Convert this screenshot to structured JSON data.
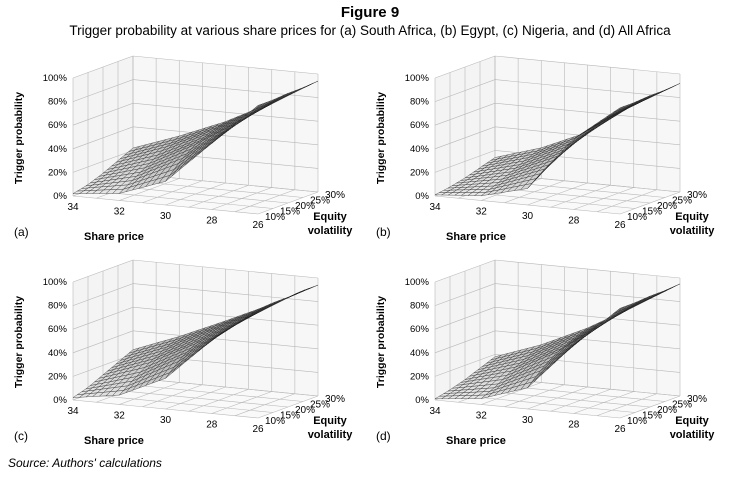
{
  "figure": {
    "title": "Figure 9",
    "subtitle": "Trigger probability at various share prices for (a) South Africa, (b) Egypt, (c) Nigeria, and (d) All Africa",
    "source": "Source: Authors' calculations"
  },
  "chart_data": [
    {
      "type": "surface",
      "panel": "(a)",
      "xlabel": "Share price",
      "ylabel": "Equity volatility",
      "zlabel": "Trigger probability",
      "x_ticks": [
        "34",
        "32",
        "30",
        "28",
        "26"
      ],
      "y_ticks": [
        "10%",
        "15%",
        "20%",
        "25%",
        "30%"
      ],
      "z_ticks": [
        "0%",
        "20%",
        "40%",
        "60%",
        "80%",
        "100%"
      ],
      "xlim": [
        34,
        26
      ],
      "ylim": [
        0.1,
        0.3
      ],
      "zlim": [
        0,
        1
      ],
      "surface_grid": {
        "share_price": [
          34,
          32,
          30,
          28,
          26
        ],
        "equity_volatility": [
          0.1,
          0.15,
          0.2,
          0.25,
          0.3
        ],
        "trigger_probability": [
          [
            0.02,
            0.05,
            0.1,
            0.16,
            0.22
          ],
          [
            0.06,
            0.14,
            0.22,
            0.3,
            0.36
          ],
          [
            0.2,
            0.33,
            0.42,
            0.48,
            0.52
          ],
          [
            0.56,
            0.62,
            0.66,
            0.69,
            0.72
          ],
          [
            0.92,
            0.92,
            0.93,
            0.93,
            0.94
          ]
        ]
      },
      "grid": true
    },
    {
      "type": "surface",
      "panel": "(b)",
      "xlabel": "Share price",
      "ylabel": "Equity volatility",
      "zlabel": "Trigger probability",
      "x_ticks": [
        "34",
        "32",
        "30",
        "28",
        "26"
      ],
      "y_ticks": [
        "10%",
        "15%",
        "20%",
        "25%",
        "30%"
      ],
      "z_ticks": [
        "0%",
        "20%",
        "40%",
        "60%",
        "80%",
        "100%"
      ],
      "xlim": [
        34,
        26
      ],
      "ylim": [
        0.1,
        0.3
      ],
      "zlim": [
        0,
        1
      ],
      "surface_grid": {
        "share_price": [
          34,
          32,
          30,
          28,
          26
        ],
        "equity_volatility": [
          0.1,
          0.15,
          0.2,
          0.25,
          0.3
        ],
        "trigger_probability": [
          [
            0.01,
            0.03,
            0.06,
            0.1,
            0.14
          ],
          [
            0.04,
            0.09,
            0.15,
            0.21,
            0.26
          ],
          [
            0.14,
            0.24,
            0.32,
            0.38,
            0.43
          ],
          [
            0.6,
            0.63,
            0.66,
            0.68,
            0.7
          ],
          [
            0.9,
            0.9,
            0.91,
            0.91,
            0.92
          ]
        ]
      },
      "grid": true
    },
    {
      "type": "surface",
      "panel": "(c)",
      "xlabel": "Share price",
      "ylabel": "Equity volatility",
      "zlabel": "Trigger probability",
      "x_ticks": [
        "34",
        "32",
        "30",
        "28",
        "26"
      ],
      "y_ticks": [
        "10%",
        "15%",
        "20%",
        "25%",
        "30%"
      ],
      "z_ticks": [
        "0%",
        "20%",
        "40%",
        "60%",
        "80%",
        "100%"
      ],
      "xlim": [
        34,
        26
      ],
      "ylim": [
        0.1,
        0.3
      ],
      "zlim": [
        0,
        1
      ],
      "surface_grid": {
        "share_price": [
          34,
          32,
          30,
          28,
          26
        ],
        "equity_volatility": [
          0.1,
          0.15,
          0.2,
          0.25,
          0.3
        ],
        "trigger_probability": [
          [
            0.02,
            0.06,
            0.12,
            0.18,
            0.24
          ],
          [
            0.08,
            0.17,
            0.26,
            0.33,
            0.39
          ],
          [
            0.26,
            0.38,
            0.46,
            0.52,
            0.56
          ],
          [
            0.62,
            0.66,
            0.69,
            0.72,
            0.74
          ],
          [
            0.92,
            0.93,
            0.93,
            0.94,
            0.94
          ]
        ]
      },
      "grid": true
    },
    {
      "type": "surface",
      "panel": "(d)",
      "xlabel": "Share price",
      "ylabel": "Equity volatility",
      "zlabel": "Trigger probability",
      "x_ticks": [
        "34",
        "32",
        "30",
        "28",
        "26"
      ],
      "y_ticks": [
        "10%",
        "15%",
        "20%",
        "25%",
        "30%"
      ],
      "z_ticks": [
        "0%",
        "20%",
        "40%",
        "60%",
        "80%",
        "100%"
      ],
      "xlim": [
        34,
        26
      ],
      "ylim": [
        0.1,
        0.3
      ],
      "zlim": [
        0,
        1
      ],
      "surface_grid": {
        "share_price": [
          34,
          32,
          30,
          28,
          26
        ],
        "equity_volatility": [
          0.1,
          0.15,
          0.2,
          0.25,
          0.3
        ],
        "trigger_probability": [
          [
            0.01,
            0.04,
            0.08,
            0.13,
            0.18
          ],
          [
            0.05,
            0.11,
            0.19,
            0.26,
            0.32
          ],
          [
            0.18,
            0.3,
            0.39,
            0.45,
            0.5
          ],
          [
            0.58,
            0.63,
            0.67,
            0.7,
            0.72
          ],
          [
            0.93,
            0.93,
            0.94,
            0.94,
            0.95
          ]
        ]
      },
      "grid": true
    }
  ]
}
